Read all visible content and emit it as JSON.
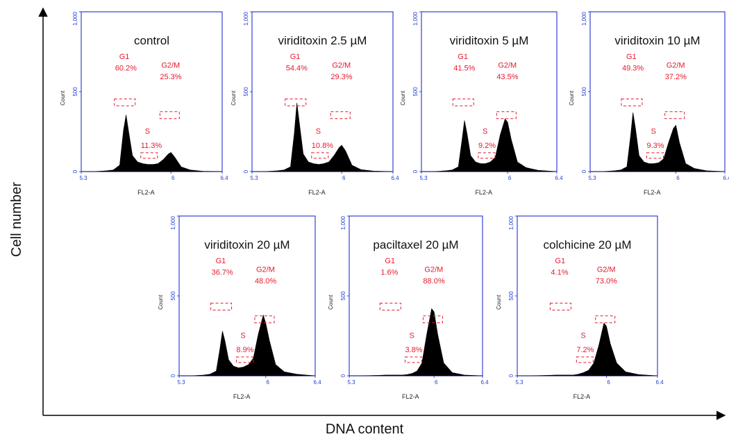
{
  "figure": {
    "x_axis_label": "DNA content",
    "y_axis_label": "Cell number"
  },
  "colors": {
    "frame": "#3440d6",
    "histogram": "#000000",
    "annotation": "#e8182c"
  },
  "chart_data": [
    {
      "type": "area",
      "title": "control",
      "xlabel": "FL2-A",
      "ylabel": "Count",
      "x_ticks": [
        "5.3",
        "6",
        "6.4"
      ],
      "y_ticks": [
        "0",
        "500",
        "1,000"
      ],
      "ylim": [
        0,
        1000
      ],
      "x": [
        5.3,
        5.4,
        5.5,
        5.55,
        5.6,
        5.63,
        5.65,
        5.67,
        5.7,
        5.74,
        5.78,
        5.82,
        5.86,
        5.9,
        5.94,
        5.98,
        6.0,
        6.03,
        6.08,
        6.15,
        6.25,
        6.4
      ],
      "series": [
        {
          "values": [
            0,
            0,
            5,
            10,
            40,
            260,
            355,
            250,
            100,
            60,
            50,
            45,
            45,
            50,
            75,
            110,
            120,
            90,
            30,
            10,
            2,
            0
          ]
        }
      ],
      "gates": [
        {
          "label": "G1",
          "value": "60.2%"
        },
        {
          "label": "S",
          "value": "11.3%"
        },
        {
          "label": "G2/M",
          "value": "25.3%"
        }
      ]
    },
    {
      "type": "area",
      "title": "viriditoxin 2.5 µM",
      "xlabel": "FL2-A",
      "ylabel": "Count",
      "x_ticks": [
        "5.3",
        "6",
        "6.4"
      ],
      "y_ticks": [
        "0",
        "500",
        "1,000"
      ],
      "ylim": [
        0,
        1000
      ],
      "x": [
        5.3,
        5.4,
        5.5,
        5.55,
        5.6,
        5.63,
        5.65,
        5.67,
        5.7,
        5.74,
        5.78,
        5.82,
        5.86,
        5.9,
        5.94,
        5.98,
        6.0,
        6.03,
        6.08,
        6.15,
        6.25,
        6.4
      ],
      "series": [
        {
          "values": [
            0,
            0,
            5,
            10,
            30,
            240,
            430,
            300,
            110,
            60,
            50,
            45,
            50,
            60,
            100,
            150,
            165,
            130,
            40,
            12,
            3,
            0
          ]
        }
      ],
      "gates": [
        {
          "label": "G1",
          "value": "54.4%"
        },
        {
          "label": "S",
          "value": "10.8%"
        },
        {
          "label": "G2/M",
          "value": "29.3%"
        }
      ]
    },
    {
      "type": "area",
      "title": "viriditoxin 5 µM",
      "xlabel": "FL2-A",
      "ylabel": "Count",
      "x_ticks": [
        "5.3",
        "6",
        "6.4"
      ],
      "y_ticks": [
        "0",
        "500",
        "1,000"
      ],
      "ylim": [
        0,
        1000
      ],
      "x": [
        5.3,
        5.4,
        5.5,
        5.55,
        5.6,
        5.63,
        5.65,
        5.67,
        5.7,
        5.74,
        5.78,
        5.82,
        5.86,
        5.9,
        5.94,
        5.98,
        6.0,
        6.03,
        6.08,
        6.15,
        6.25,
        6.4
      ],
      "series": [
        {
          "values": [
            0,
            0,
            5,
            10,
            30,
            200,
            320,
            240,
            100,
            60,
            50,
            50,
            60,
            90,
            230,
            330,
            310,
            200,
            60,
            25,
            8,
            0
          ]
        }
      ],
      "gates": [
        {
          "label": "G1",
          "value": "41.5%"
        },
        {
          "label": "S",
          "value": "9.2%"
        },
        {
          "label": "G2/M",
          "value": "43.5%"
        }
      ]
    },
    {
      "type": "area",
      "title": "viriditoxin 10 µM",
      "xlabel": "FL2-A",
      "ylabel": "Count",
      "x_ticks": [
        "5.3",
        "6",
        "6.4"
      ],
      "y_ticks": [
        "0",
        "500",
        "1,000"
      ],
      "ylim": [
        0,
        1000
      ],
      "x": [
        5.3,
        5.4,
        5.5,
        5.55,
        5.6,
        5.63,
        5.65,
        5.67,
        5.7,
        5.74,
        5.78,
        5.82,
        5.86,
        5.9,
        5.94,
        5.98,
        6.0,
        6.03,
        6.08,
        6.15,
        6.25,
        6.4
      ],
      "series": [
        {
          "values": [
            0,
            0,
            5,
            10,
            30,
            220,
            370,
            270,
            100,
            60,
            50,
            50,
            55,
            80,
            180,
            270,
            290,
            180,
            50,
            20,
            5,
            0
          ]
        }
      ],
      "gates": [
        {
          "label": "G1",
          "value": "49.3%"
        },
        {
          "label": "S",
          "value": "9.3%"
        },
        {
          "label": "G2/M",
          "value": "37.2%"
        }
      ]
    },
    {
      "type": "area",
      "title": "viriditoxin 20 µM",
      "xlabel": "FL2-A",
      "ylabel": "Count",
      "x_ticks": [
        "5.3",
        "6",
        "6.4"
      ],
      "y_ticks": [
        "0",
        "500",
        "1,000"
      ],
      "ylim": [
        0,
        1000
      ],
      "x": [
        5.3,
        5.4,
        5.5,
        5.55,
        5.6,
        5.63,
        5.65,
        5.67,
        5.7,
        5.74,
        5.78,
        5.82,
        5.86,
        5.9,
        5.94,
        5.98,
        6.0,
        6.03,
        6.08,
        6.15,
        6.25,
        6.4
      ],
      "series": [
        {
          "values": [
            0,
            0,
            5,
            10,
            30,
            170,
            280,
            220,
            100,
            60,
            50,
            55,
            70,
            110,
            260,
            380,
            330,
            220,
            70,
            25,
            10,
            0
          ]
        }
      ],
      "gates": [
        {
          "label": "G1",
          "value": "36.7%"
        },
        {
          "label": "S",
          "value": "8.9%"
        },
        {
          "label": "G2/M",
          "value": "48.0%"
        }
      ]
    },
    {
      "type": "area",
      "title": "paciltaxel 20 µM",
      "xlabel": "FL2-A",
      "ylabel": "Count",
      "x_ticks": [
        "5.3",
        "6",
        "6.4"
      ],
      "y_ticks": [
        "0",
        "500",
        "1,000"
      ],
      "ylim": [
        0,
        1000
      ],
      "x": [
        5.3,
        5.4,
        5.5,
        5.55,
        5.6,
        5.63,
        5.65,
        5.67,
        5.7,
        5.74,
        5.78,
        5.82,
        5.86,
        5.9,
        5.94,
        5.98,
        6.0,
        6.03,
        6.08,
        6.15,
        6.25,
        6.4
      ],
      "series": [
        {
          "values": [
            0,
            0,
            2,
            3,
            5,
            5,
            5,
            5,
            5,
            5,
            8,
            15,
            30,
            80,
            260,
            420,
            400,
            260,
            80,
            20,
            5,
            0
          ]
        }
      ],
      "gates": [
        {
          "label": "G1",
          "value": "1.6%"
        },
        {
          "label": "S",
          "value": "3.8%"
        },
        {
          "label": "G2/M",
          "value": "88.0%"
        }
      ]
    },
    {
      "type": "area",
      "title": "colchicine 20 µM",
      "xlabel": "FL2-A",
      "ylabel": "Count",
      "x_ticks": [
        "5.3",
        "6",
        "6.4"
      ],
      "y_ticks": [
        "0",
        "500",
        "1,000"
      ],
      "ylim": [
        0,
        1000
      ],
      "x": [
        5.3,
        5.4,
        5.5,
        5.55,
        5.6,
        5.63,
        5.65,
        5.67,
        5.7,
        5.74,
        5.78,
        5.82,
        5.86,
        5.9,
        5.94,
        5.98,
        6.0,
        6.03,
        6.08,
        6.15,
        6.25,
        6.4
      ],
      "series": [
        {
          "values": [
            0,
            0,
            2,
            3,
            5,
            5,
            5,
            5,
            5,
            5,
            10,
            20,
            35,
            80,
            190,
            330,
            310,
            200,
            80,
            25,
            8,
            0
          ]
        }
      ],
      "gates": [
        {
          "label": "G1",
          "value": "4.1%"
        },
        {
          "label": "S",
          "value": "7.2%"
        },
        {
          "label": "G2/M",
          "value": "73.0%"
        }
      ]
    }
  ]
}
